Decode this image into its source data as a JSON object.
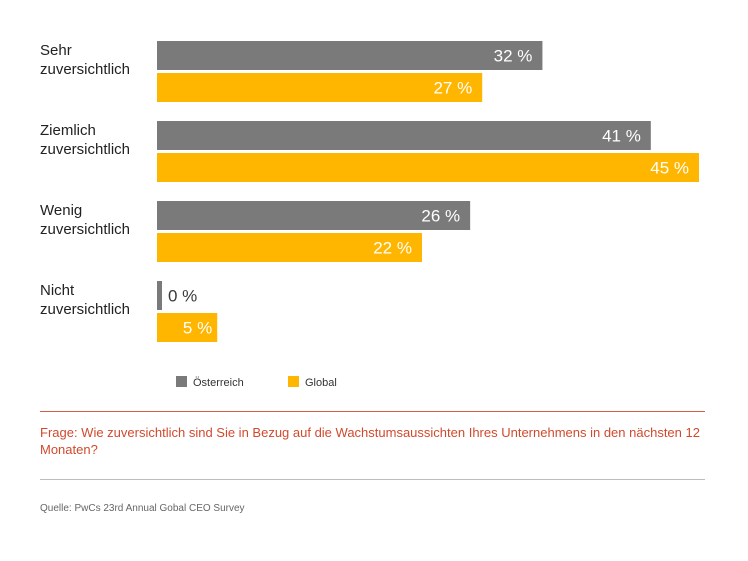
{
  "chart_data": {
    "type": "bar",
    "orientation": "horizontal",
    "categories": [
      [
        "Sehr",
        "zuversichtlich"
      ],
      [
        "Ziemlich",
        "zuversichtlich"
      ],
      [
        "Wenig",
        "zuversichtlich"
      ],
      [
        "Nicht",
        "zuversichtlich"
      ]
    ],
    "series": [
      {
        "name": "Österreich",
        "color": "#7a7a7a",
        "values": [
          32,
          41,
          26,
          0
        ]
      },
      {
        "name": "Global",
        "color": "#ffb600",
        "values": [
          27,
          45,
          22,
          5
        ]
      }
    ],
    "value_suffix": " %",
    "xlim": [
      0,
      45
    ],
    "legend": "bottom-left"
  },
  "footer": {
    "question": "Frage: Wie zuversichtlich sind Sie in Bezug auf die Wachstumsaussichten Ihres Unternehmens in den nächsten 12 Monaten?",
    "source": "Quelle: PwCs 23rd Annual Gobal CEO Survey"
  }
}
